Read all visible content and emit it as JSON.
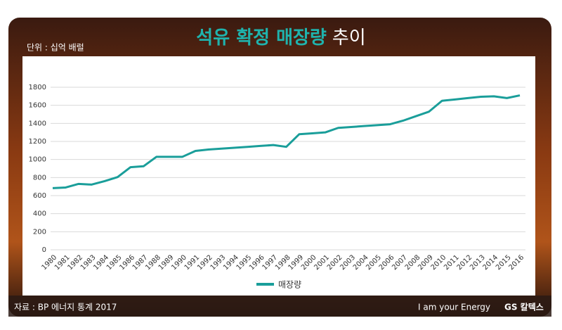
{
  "chart_data": {
    "type": "line",
    "title_parts": [
      "석유 확정 매장량",
      "추이"
    ],
    "unit_label": "단위 : 십억 배럴",
    "source": "자료 : BP 에너지 통계 2017",
    "brand": [
      "I am your Energy",
      "GS 칼텍스"
    ],
    "categories": [
      "1980",
      "1981",
      "1982",
      "1983",
      "1984",
      "1985",
      "1986",
      "1987",
      "1988",
      "1989",
      "1990",
      "1991",
      "1992",
      "1993",
      "1994",
      "1995",
      "1996",
      "1997",
      "1998",
      "1999",
      "2000",
      "2001",
      "2002",
      "2003",
      "2004",
      "2005",
      "2006",
      "2007",
      "2008",
      "2009",
      "2010",
      "2011",
      "2012",
      "2013",
      "2014",
      "2015",
      "2016"
    ],
    "series": [
      {
        "name": "매장량",
        "color": "#1a9e9a",
        "values": [
          683,
          690,
          730,
          722,
          760,
          805,
          915,
          925,
          1030,
          1030,
          1030,
          1095,
          1110,
          1120,
          1130,
          1140,
          1150,
          1160,
          1140,
          1280,
          1290,
          1300,
          1350,
          1360,
          1370,
          1380,
          1390,
          1430,
          1480,
          1530,
          1650,
          1665,
          1680,
          1695,
          1700,
          1680,
          1710
        ]
      }
    ],
    "ylim": [
      0,
      1800
    ],
    "yticks": [
      0,
      200,
      400,
      600,
      800,
      1000,
      1200,
      1400,
      1600,
      1800
    ],
    "grid": true,
    "legend": "bottom"
  }
}
